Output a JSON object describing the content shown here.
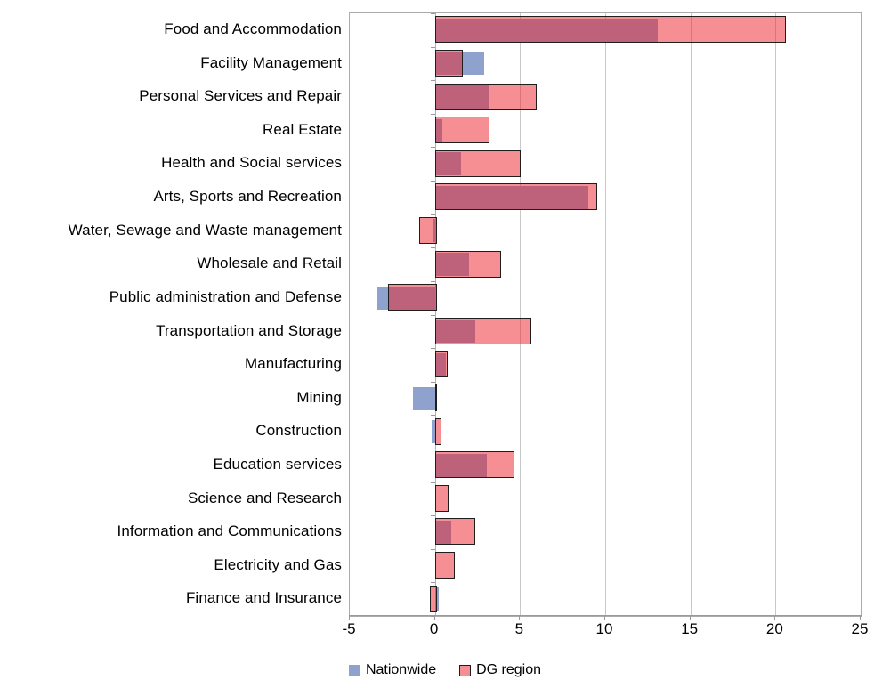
{
  "chart_data": {
    "type": "bar",
    "orientation": "horizontal",
    "title": "",
    "xlabel": "",
    "ylabel": "",
    "xlim": [
      -5,
      25
    ],
    "xticks": [
      -5,
      0,
      5,
      10,
      15,
      20,
      25
    ],
    "grid": true,
    "legend_position": "bottom",
    "categories": [
      "Food and Accommodation",
      "Facility Management",
      "Personal Services and Repair",
      "Real Estate",
      "Health and Social services",
      "Arts, Sports and Recreation",
      "Water, Sewage and Waste management",
      "Wholesale and Retail",
      "Public administration and Defense",
      "Transportation and Storage",
      "Manufacturing",
      "Mining",
      "Construction",
      "Education services",
      "Science and Research",
      "Information and Communications",
      "Electricity and Gas",
      "Finance and Insurance"
    ],
    "series": [
      {
        "name": "Nationwide",
        "color": "#8FA2CE",
        "values": [
          13.1,
          2.9,
          3.15,
          0.45,
          1.55,
          9.0,
          -0.15,
          2.0,
          -3.4,
          2.35,
          0.65,
          -1.3,
          -0.2,
          3.05,
          0,
          0.95,
          0,
          0.25
        ]
      },
      {
        "name": "DG region",
        "color": "#ED2028",
        "fill_rgba": "rgba(237,32,40,0.5)",
        "border_color": "#1e1e1e",
        "values": [
          20.5,
          1.55,
          5.85,
          3.1,
          4.95,
          9.4,
          -0.9,
          3.8,
          -2.75,
          5.55,
          0.65,
          0,
          0.3,
          4.55,
          0.7,
          2.25,
          1.05,
          -0.3
        ]
      }
    ],
    "overlap_color": "#BE5F7B",
    "gridline_color": "#c9c9c9",
    "axis_color": "#9a9a9a"
  },
  "legend": {
    "nationwide_label": "Nationwide",
    "dg_region_label": "DG region"
  }
}
